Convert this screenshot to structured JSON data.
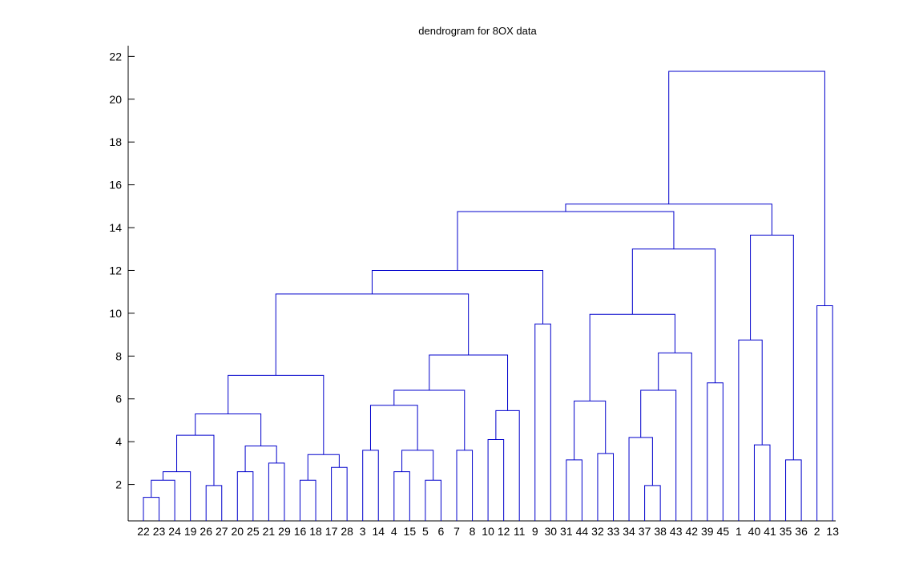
{
  "chart_data": {
    "type": "dendrogram",
    "title": "dendrogram for 8OX data",
    "xlabel": "",
    "ylabel": "",
    "ylim": [
      0.3,
      22.5
    ],
    "yticks": [
      2,
      4,
      6,
      8,
      10,
      12,
      14,
      16,
      18,
      20,
      22
    ],
    "grid": false,
    "line_color": "#0000cc",
    "leaf_order": [
      22,
      23,
      24,
      19,
      26,
      27,
      20,
      25,
      21,
      29,
      16,
      18,
      17,
      28,
      3,
      14,
      4,
      15,
      5,
      6,
      7,
      8,
      10,
      12,
      11,
      9,
      30,
      31,
      44,
      32,
      33,
      34,
      37,
      38,
      43,
      42,
      39,
      45,
      1,
      40,
      41,
      35,
      36,
      2,
      13
    ],
    "merges": [
      {
        "id": "A",
        "children": [
          "L:22",
          "L:23"
        ],
        "height": 1.4
      },
      {
        "id": "B",
        "children": [
          "A",
          "L:24"
        ],
        "height": 2.2
      },
      {
        "id": "C",
        "children": [
          "B",
          "L:19"
        ],
        "height": 2.6
      },
      {
        "id": "D",
        "children": [
          "L:26",
          "L:27"
        ],
        "height": 1.95
      },
      {
        "id": "E",
        "children": [
          "C",
          "D"
        ],
        "height": 4.3
      },
      {
        "id": "F",
        "children": [
          "L:20",
          "L:25"
        ],
        "height": 2.6
      },
      {
        "id": "G",
        "children": [
          "L:21",
          "L:29"
        ],
        "height": 3.0
      },
      {
        "id": "H",
        "children": [
          "F",
          "G"
        ],
        "height": 3.8
      },
      {
        "id": "I",
        "children": [
          "E",
          "H"
        ],
        "height": 5.3
      },
      {
        "id": "J",
        "children": [
          "L:16",
          "L:18"
        ],
        "height": 2.2
      },
      {
        "id": "K",
        "children": [
          "L:17",
          "L:28"
        ],
        "height": 2.8
      },
      {
        "id": "Lm",
        "children": [
          "J",
          "K"
        ],
        "height": 3.4
      },
      {
        "id": "M",
        "children": [
          "I",
          "Lm"
        ],
        "height": 7.1
      },
      {
        "id": "N",
        "children": [
          "L:3",
          "L:14"
        ],
        "height": 3.6
      },
      {
        "id": "O",
        "children": [
          "L:4",
          "L:15"
        ],
        "height": 2.6
      },
      {
        "id": "P",
        "children": [
          "L:5",
          "L:6"
        ],
        "height": 2.2
      },
      {
        "id": "Q",
        "children": [
          "O",
          "P"
        ],
        "height": 3.6
      },
      {
        "id": "R",
        "children": [
          "N",
          "Q"
        ],
        "height": 5.7
      },
      {
        "id": "S",
        "children": [
          "L:7",
          "L:8"
        ],
        "height": 3.6
      },
      {
        "id": "T",
        "children": [
          "R",
          "S"
        ],
        "height": 6.4
      },
      {
        "id": "U",
        "children": [
          "L:10",
          "L:12"
        ],
        "height": 4.1
      },
      {
        "id": "V",
        "children": [
          "U",
          "L:11"
        ],
        "height": 5.45
      },
      {
        "id": "W",
        "children": [
          "T",
          "V"
        ],
        "height": 8.05
      },
      {
        "id": "X",
        "children": [
          "M",
          "W"
        ],
        "height": 10.9
      },
      {
        "id": "Y",
        "children": [
          "L:9",
          "L:30"
        ],
        "height": 9.5
      },
      {
        "id": "Z",
        "children": [
          "X",
          "Y"
        ],
        "height": 12.0
      },
      {
        "id": "AA",
        "children": [
          "L:31",
          "L:44"
        ],
        "height": 3.15
      },
      {
        "id": "AB",
        "children": [
          "L:32",
          "L:33"
        ],
        "height": 3.45
      },
      {
        "id": "AC",
        "children": [
          "AA",
          "AB"
        ],
        "height": 5.9
      },
      {
        "id": "AD",
        "children": [
          "L:37",
          "L:38"
        ],
        "height": 1.95
      },
      {
        "id": "AE",
        "children": [
          "L:34",
          "AD"
        ],
        "height": 4.2
      },
      {
        "id": "AF",
        "children": [
          "AE",
          "L:43"
        ],
        "height": 6.4
      },
      {
        "id": "AG",
        "children": [
          "AF",
          "L:42"
        ],
        "height": 8.15
      },
      {
        "id": "AH",
        "children": [
          "AC",
          "AG"
        ],
        "height": 9.95
      },
      {
        "id": "AI",
        "children": [
          "L:39",
          "L:45"
        ],
        "height": 6.75
      },
      {
        "id": "AJ",
        "children": [
          "AH",
          "AI"
        ],
        "height": 13.0
      },
      {
        "id": "AK",
        "children": [
          "Z",
          "AJ"
        ],
        "height": 14.75
      },
      {
        "id": "AL",
        "children": [
          "L:40",
          "L:41"
        ],
        "height": 3.85
      },
      {
        "id": "AM",
        "children": [
          "L:1",
          "AL"
        ],
        "height": 8.75
      },
      {
        "id": "AN",
        "children": [
          "L:35",
          "L:36"
        ],
        "height": 3.15
      },
      {
        "id": "AO",
        "children": [
          "AM",
          "AN"
        ],
        "height": 13.65
      },
      {
        "id": "AP",
        "children": [
          "AK",
          "AO"
        ],
        "height": 15.1
      },
      {
        "id": "AQ",
        "children": [
          "L:2",
          "L:13"
        ],
        "height": 10.35
      },
      {
        "id": "AR",
        "children": [
          "AP",
          "AQ"
        ],
        "height": 21.3
      }
    ]
  }
}
